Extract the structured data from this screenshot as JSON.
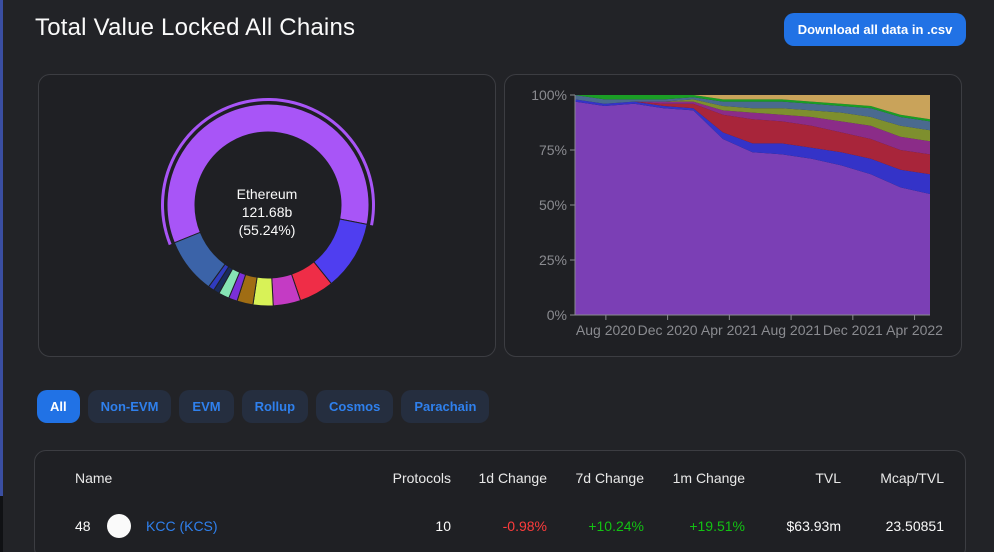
{
  "page": {
    "title": "Total Value Locked All Chains"
  },
  "header": {
    "download_label": "Download all data in .csv"
  },
  "pie": {
    "center_name": "Ethereum",
    "center_value": "121.68b",
    "center_pct": "(55.24%)",
    "slices": [
      {
        "value": 55.24,
        "color": "#a855f7"
      },
      {
        "value": 10.4,
        "color": "#4f3ef0"
      },
      {
        "value": 5.2,
        "color": "#ef2d47"
      },
      {
        "value": 4.1,
        "color": "#c43bc4"
      },
      {
        "value": 3.0,
        "color": "#d8f257"
      },
      {
        "value": 2.4,
        "color": "#a06d14"
      },
      {
        "value": 1.3,
        "color": "#7b2fd9"
      },
      {
        "value": 1.6,
        "color": "#86e3b4"
      },
      {
        "value": 0.9,
        "color": "#1a2b5c"
      },
      {
        "value": 0.9,
        "color": "#2f3bbf"
      },
      {
        "value": 8.3,
        "color": "#3b63a8"
      }
    ]
  },
  "chart_data": {
    "type": "area",
    "stacked": "percent",
    "x": [
      "Jun 2020",
      "Aug 2020",
      "Oct 2020",
      "Dec 2020",
      "Feb 2021",
      "Apr 2021",
      "Jun 2021",
      "Aug 2021",
      "Oct 2021",
      "Dec 2021",
      "Feb 2022",
      "Apr 2022",
      "May 2022"
    ],
    "xticks": [
      "Aug 2020",
      "Dec 2020",
      "Apr 2021",
      "Aug 2021",
      "Dec 2021",
      "Apr 2022"
    ],
    "yticks": [
      "0%",
      "25%",
      "50%",
      "75%",
      "100%"
    ],
    "ylim": [
      0,
      100
    ],
    "series": [
      {
        "color": "#7b3fb5",
        "values": [
          97,
          95,
          96,
          94,
          93,
          80,
          74,
          73,
          71,
          68,
          64,
          58,
          55
        ]
      },
      {
        "color": "#3433c8",
        "values": [
          1,
          1,
          1,
          1,
          1,
          3,
          4,
          5,
          5,
          6,
          7,
          8,
          9
        ]
      },
      {
        "color": "#a8253a",
        "values": [
          0,
          0,
          0,
          1,
          2,
          8,
          11,
          10,
          10,
          9,
          9,
          9,
          9
        ]
      },
      {
        "color": "#8b2c88",
        "values": [
          0,
          0,
          0,
          1,
          1,
          2,
          3,
          3,
          4,
          5,
          6,
          6,
          6
        ]
      },
      {
        "color": "#7e8f2e",
        "values": [
          0,
          0,
          0,
          0,
          1,
          2,
          2,
          3,
          3,
          4,
          4,
          5,
          5
        ]
      },
      {
        "color": "#4a6a8f",
        "values": [
          2,
          2,
          1,
          1,
          1,
          2,
          3,
          3,
          3,
          3,
          4,
          4,
          4
        ]
      },
      {
        "color": "#1a9e25",
        "values": [
          0,
          2,
          2,
          2,
          1,
          1,
          1,
          1,
          1,
          1,
          1,
          1,
          1
        ]
      },
      {
        "color": "#c9a35a",
        "values": [
          0,
          0,
          0,
          0,
          0,
          2,
          2,
          2,
          3,
          4,
          5,
          9,
          11
        ]
      }
    ]
  },
  "filters": {
    "items": [
      {
        "label": "All",
        "active": true
      },
      {
        "label": "Non-EVM",
        "active": false
      },
      {
        "label": "EVM",
        "active": false
      },
      {
        "label": "Rollup",
        "active": false
      },
      {
        "label": "Cosmos",
        "active": false
      },
      {
        "label": "Parachain",
        "active": false
      }
    ]
  },
  "table": {
    "headers": {
      "name": "Name",
      "protocols": "Protocols",
      "change_1d": "1d Change",
      "change_7d": "7d Change",
      "change_1m": "1m Change",
      "tvl": "TVL",
      "mcap_tvl": "Mcap/TVL"
    },
    "rows": [
      {
        "rank": "48",
        "name": "KCC (KCS)",
        "protocols": "10",
        "change_1d": "-0.98%",
        "change_7d": "+10.24%",
        "change_1m": "+19.51%",
        "tvl": "$63.93m",
        "mcap_tvl": "23.50851"
      }
    ]
  },
  "colors": {
    "accent": "#2172e5",
    "link": "#2f80ed",
    "negative": "#fd3c3c",
    "positive": "#13c213"
  }
}
